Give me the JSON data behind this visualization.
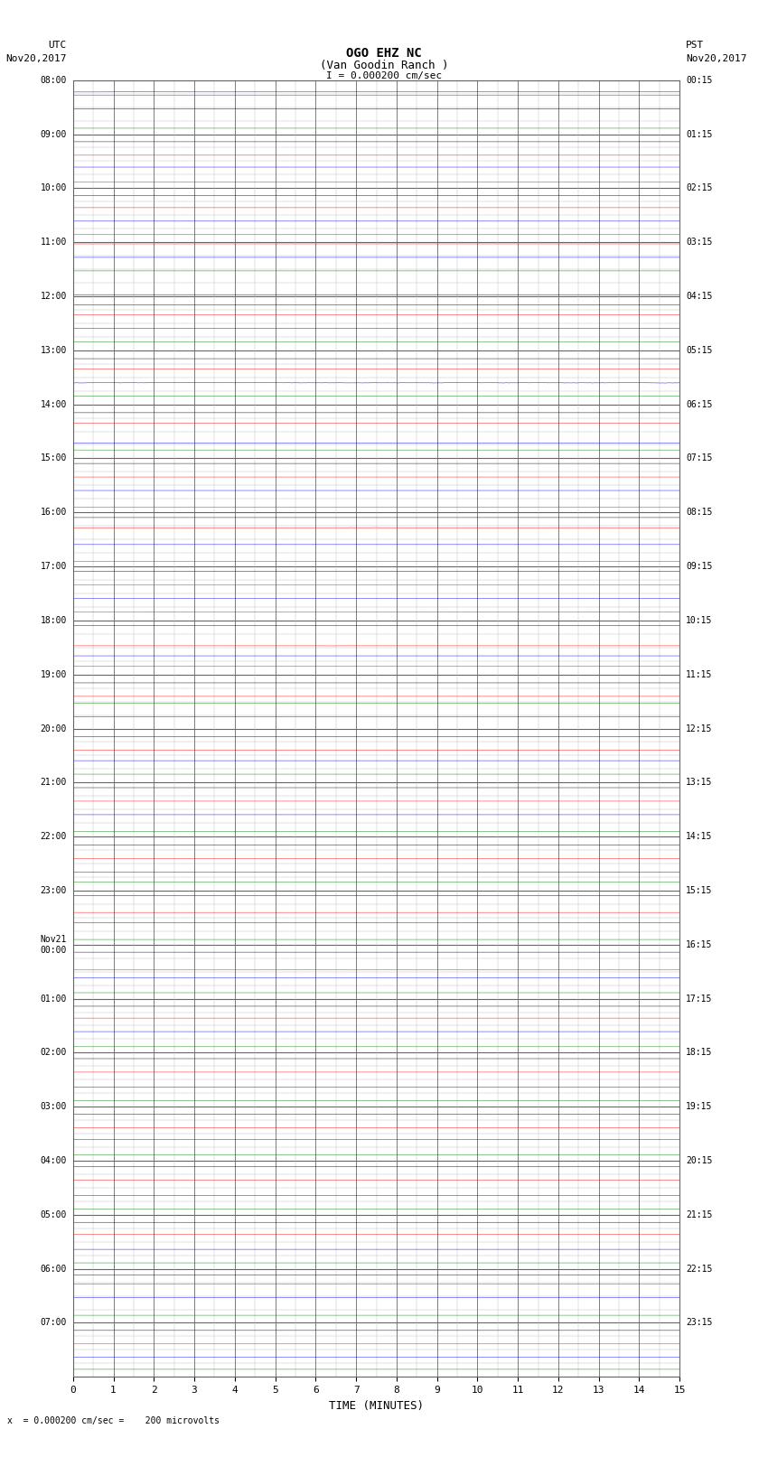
{
  "title_line1": "OGO EHZ NC",
  "title_line2": "(Van Goodin Ranch )",
  "title_scale": "I = 0.000200 cm/sec",
  "left_header_line1": "UTC",
  "left_header_line2": "Nov20,2017",
  "right_header_line1": "PST",
  "right_header_line2": "Nov20,2017",
  "bottom_label": "TIME (MINUTES)",
  "bottom_note": "x  = 0.000200 cm/sec =    200 microvolts",
  "xlim": [
    0,
    15
  ],
  "xticks": [
    0,
    1,
    2,
    3,
    4,
    5,
    6,
    7,
    8,
    9,
    10,
    11,
    12,
    13,
    14,
    15
  ],
  "num_rows": 96,
  "background_color": "#ffffff",
  "grid_color": "#666666",
  "grid_minor_color": "#bbbbbb",
  "left_times_utc": [
    "08:00",
    "",
    "",
    "",
    "09:00",
    "",
    "",
    "",
    "10:00",
    "",
    "",
    "",
    "11:00",
    "",
    "",
    "",
    "12:00",
    "",
    "",
    "",
    "13:00",
    "",
    "",
    "",
    "14:00",
    "",
    "",
    "",
    "15:00",
    "",
    "",
    "",
    "16:00",
    "",
    "",
    "",
    "17:00",
    "",
    "",
    "",
    "18:00",
    "",
    "",
    "",
    "19:00",
    "",
    "",
    "",
    "20:00",
    "",
    "",
    "",
    "21:00",
    "",
    "",
    "",
    "22:00",
    "",
    "",
    "",
    "23:00",
    "",
    "",
    "",
    "Nov21\n00:00",
    "",
    "",
    "",
    "01:00",
    "",
    "",
    "",
    "02:00",
    "",
    "",
    "",
    "03:00",
    "",
    "",
    "",
    "04:00",
    "",
    "",
    "",
    "05:00",
    "",
    "",
    "",
    "06:00",
    "",
    "",
    "",
    "07:00",
    "",
    "",
    ""
  ],
  "right_times_pst": [
    "00:15",
    "",
    "",
    "",
    "01:15",
    "",
    "",
    "",
    "02:15",
    "",
    "",
    "",
    "03:15",
    "",
    "",
    "",
    "04:15",
    "",
    "",
    "",
    "05:15",
    "",
    "",
    "",
    "06:15",
    "",
    "",
    "",
    "07:15",
    "",
    "",
    "",
    "08:15",
    "",
    "",
    "",
    "09:15",
    "",
    "",
    "",
    "10:15",
    "",
    "",
    "",
    "11:15",
    "",
    "",
    "",
    "12:15",
    "",
    "",
    "",
    "13:15",
    "",
    "",
    "",
    "14:15",
    "",
    "",
    "",
    "15:15",
    "",
    "",
    "",
    "16:15",
    "",
    "",
    "",
    "17:15",
    "",
    "",
    "",
    "18:15",
    "",
    "",
    "",
    "19:15",
    "",
    "",
    "",
    "20:15",
    "",
    "",
    "",
    "21:15",
    "",
    "",
    "",
    "22:15",
    "",
    "",
    "",
    "23:15",
    "",
    "",
    ""
  ],
  "fig_width": 8.5,
  "fig_height": 16.13,
  "dpi": 100
}
